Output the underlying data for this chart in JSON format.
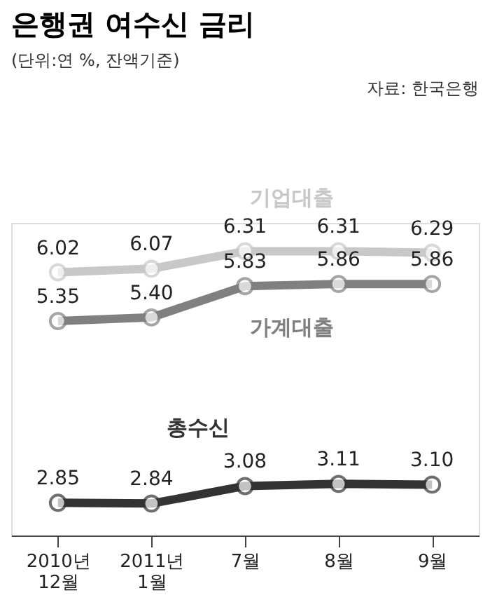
{
  "chart_data": {
    "type": "line",
    "title": "은행권 여수신 금리",
    "subtitle": "(단위:연 %, 잔액기준)",
    "annotations": [
      "자료: 한국은행"
    ],
    "categories": [
      "2010년 12월",
      "2011년 1월",
      "7월",
      "8월",
      "9월"
    ],
    "series": [
      {
        "name": "기업대출",
        "color": "#c8c8c8",
        "values": [
          6.02,
          6.07,
          6.31,
          6.31,
          6.29
        ],
        "value_labels": [
          "6.02",
          "6.07",
          "6.31",
          "6.31",
          "6.29"
        ]
      },
      {
        "name": "가계대출",
        "color": "#808080",
        "values": [
          5.35,
          5.4,
          5.83,
          5.86,
          5.86
        ],
        "value_labels": [
          "5.35",
          "5.40",
          "5.83",
          "5.86",
          "5.86"
        ]
      },
      {
        "name": "총수신",
        "color": "#333333",
        "values": [
          2.85,
          2.84,
          3.08,
          3.11,
          3.1
        ],
        "value_labels": [
          "2.85",
          "2.84",
          "3.08",
          "3.11",
          "3.10"
        ]
      }
    ],
    "ylim": [
      2.4,
      6.7
    ],
    "tick_labels": "x",
    "marker": "circle",
    "line_style": "solid",
    "grid": false
  }
}
